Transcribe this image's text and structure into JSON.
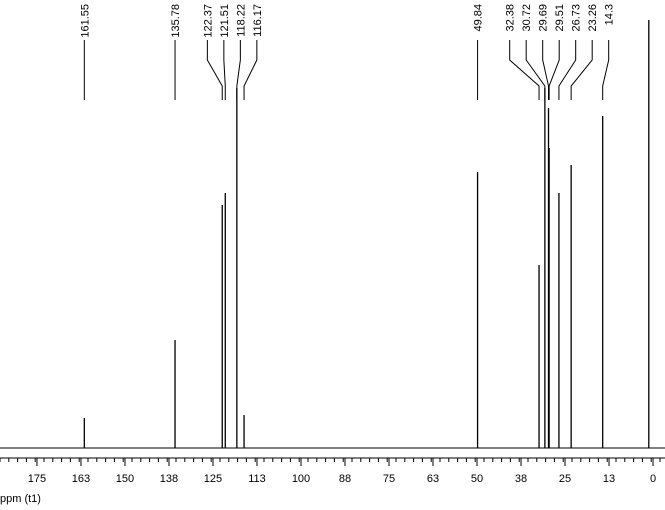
{
  "chart_data": {
    "type": "spectrum",
    "x_label": "ppm (t1)",
    "x": [
      161.55,
      135.78,
      122.37,
      121.51,
      118.22,
      116.17,
      49.84,
      32.38,
      30.72,
      29.69,
      29.51,
      26.73,
      23.26,
      14.3
    ],
    "values": [
      30,
      108,
      243,
      255,
      360,
      33,
      276,
      183,
      360,
      340,
      300,
      255,
      283,
      332
    ],
    "unlabeled_peaks": {
      "x": [
        1.2
      ],
      "values": [
        428
      ]
    },
    "color": "#000000",
    "xlim": [
      185.5,
      -3.4
    ],
    "xticks": [
      175,
      {
        "value": 162.5,
        "label": "163"
      },
      150,
      {
        "value": 137.5,
        "label": "138"
      },
      125,
      {
        "value": 112.5,
        "label": "113"
      },
      100,
      {
        "value": 87.5,
        "label": "88"
      },
      75,
      {
        "value": 62.5,
        "label": "63"
      },
      50,
      {
        "value": 37.5,
        "label": "38"
      },
      25,
      {
        "value": 12.5,
        "label": "13"
      },
      0
    ]
  }
}
